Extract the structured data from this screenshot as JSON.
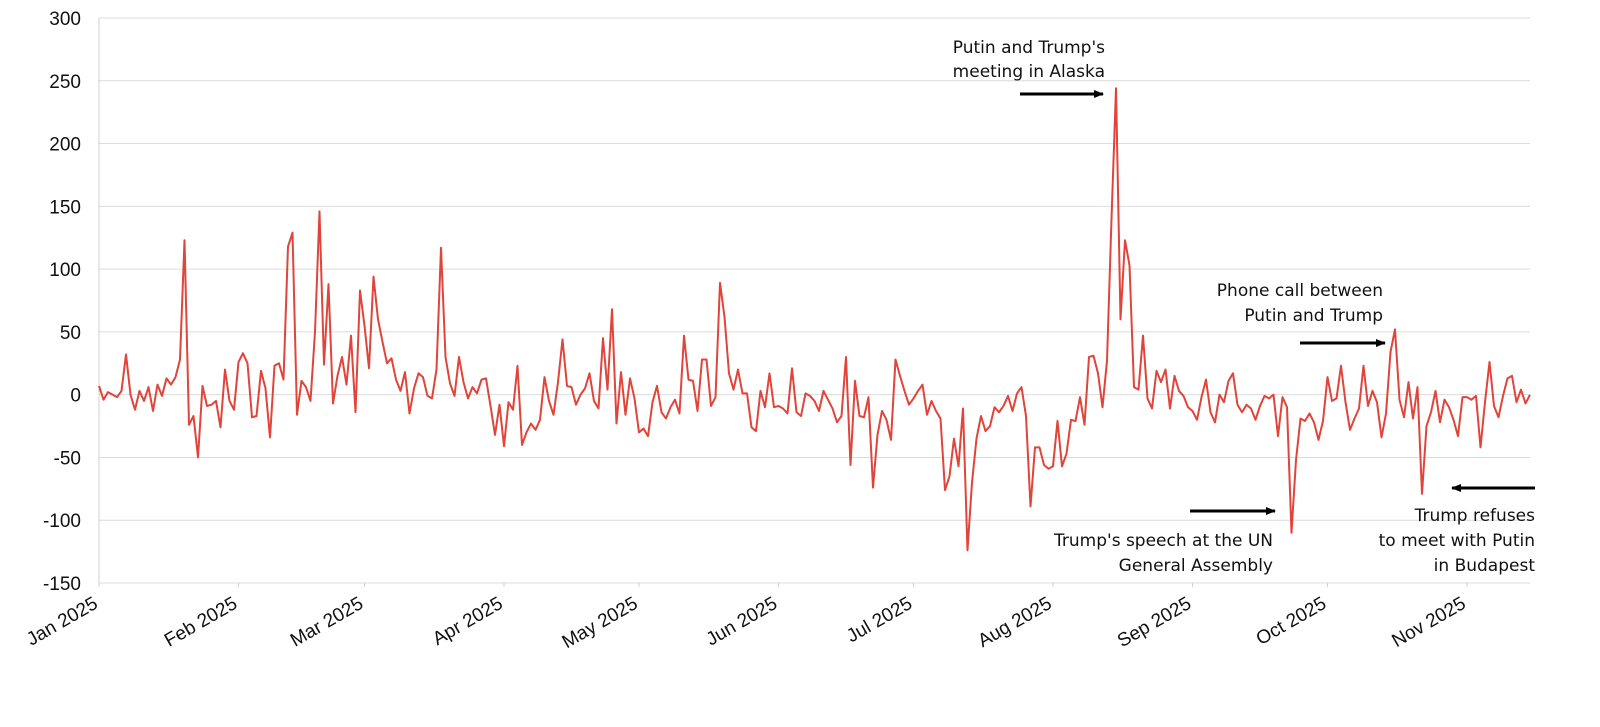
{
  "chart_data": {
    "type": "line",
    "color": "#e0443a",
    "grid": true,
    "ylim": [
      -150,
      300
    ],
    "yticks": [
      -150,
      -100,
      -50,
      0,
      50,
      100,
      150,
      200,
      250,
      300
    ],
    "xlim": [
      0,
      318
    ],
    "xticks": [
      {
        "value": 0,
        "label": "Jan 2025"
      },
      {
        "value": 31,
        "label": "Feb 2025"
      },
      {
        "value": 59,
        "label": "Mar 2025"
      },
      {
        "value": 90,
        "label": "Apr 2025"
      },
      {
        "value": 120,
        "label": "May 2025"
      },
      {
        "value": 151,
        "label": "Jun 2025"
      },
      {
        "value": 181,
        "label": "Jul 2025"
      },
      {
        "value": 212,
        "label": "Aug 2025"
      },
      {
        "value": 243,
        "label": "Sep 2025"
      },
      {
        "value": 273,
        "label": "Oct 2025"
      },
      {
        "value": 304,
        "label": "Nov 2025"
      }
    ],
    "values": [
      7,
      -4,
      2,
      0,
      -2,
      3,
      32,
      0,
      -12,
      3,
      -5,
      6,
      -13,
      8,
      -1,
      13,
      8,
      14,
      28,
      123,
      -24,
      -17,
      -50,
      7,
      -9,
      -8,
      -5,
      -26,
      20,
      -5,
      -12,
      26,
      33,
      25,
      -18,
      -17,
      19,
      5,
      -34,
      23,
      25,
      12,
      118,
      129,
      -16,
      11,
      6,
      -5,
      50,
      146,
      24,
      88,
      -7,
      15,
      30,
      8,
      47,
      -14,
      83,
      55,
      21,
      94,
      60,
      42,
      25,
      29,
      12,
      3,
      18,
      -15,
      5,
      17,
      14,
      -1,
      -3,
      20,
      117,
      30,
      9,
      -1,
      30,
      10,
      -3,
      6,
      1,
      12,
      13,
      -9,
      -32,
      -8,
      -41,
      -6,
      -12,
      23,
      -40,
      -30,
      -23,
      -28,
      -20,
      14,
      -5,
      -16,
      10,
      44,
      7,
      6,
      -8,
      0,
      5,
      17,
      -5,
      -11,
      45,
      4,
      68,
      -23,
      18,
      -16,
      13,
      -3,
      -30,
      -27,
      -33,
      -6,
      7,
      -14,
      -19,
      -10,
      -4,
      -15,
      47,
      12,
      11,
      -13,
      28,
      28,
      -9,
      -2,
      89,
      62,
      17,
      4,
      20,
      1,
      1,
      -26,
      -29,
      3,
      -10,
      17,
      -10,
      -9,
      -11,
      -15,
      21,
      -14,
      -17,
      1,
      -1,
      -5,
      -13,
      3,
      -4,
      -11,
      -22,
      -17,
      30,
      -56,
      11,
      -17,
      -18,
      -2,
      -74,
      -32,
      -13,
      -20,
      -36,
      28,
      15,
      3,
      -8,
      -3,
      3,
      8,
      -16,
      -5,
      -13,
      -19,
      -76,
      -65,
      -35,
      -57,
      -11,
      -124,
      -70,
      -35,
      -17,
      -29,
      -25,
      -10,
      -14,
      -9,
      -1,
      -13,
      1,
      6,
      -17,
      -89,
      -42,
      -42,
      -56,
      -59,
      -57,
      -21,
      -57,
      -47,
      -20,
      -21,
      -2,
      -24,
      30,
      31,
      17,
      -10,
      27,
      140,
      244,
      60,
      123,
      103,
      6,
      4,
      47,
      -3,
      -11,
      19,
      10,
      20,
      -11,
      15,
      3,
      -1,
      -10,
      -13,
      -20,
      -2,
      12,
      -14,
      -22,
      0,
      -6,
      11,
      17,
      -8,
      -14,
      -8,
      -11,
      -20,
      -9,
      -1,
      -3,
      0,
      -33,
      -2,
      -10,
      -110,
      -52,
      -19,
      -21,
      -15,
      -22,
      -36,
      -21,
      14,
      -5,
      -3,
      23,
      -6,
      -28,
      -19,
      -11,
      23,
      -9,
      3,
      -6,
      -34,
      -15,
      34,
      52,
      -4,
      -18,
      10,
      -19,
      6,
      -79,
      -25,
      -14,
      3,
      -22,
      -4,
      -10,
      -20,
      -33,
      -2,
      -2,
      -4,
      -1,
      -42,
      -6,
      26,
      -9,
      -18,
      -1,
      13,
      15,
      -6,
      4,
      -7,
      0
    ],
    "annotations": [
      [
        "Putin and Trump's",
        "meeting in Alaska"
      ],
      [
        "Phone call between",
        "Putin and Trump"
      ],
      [
        "Trump's speech at the UN",
        "General Assembly"
      ],
      [
        "Trump refuses",
        "to meet with Putin",
        "in Budapest"
      ]
    ]
  }
}
